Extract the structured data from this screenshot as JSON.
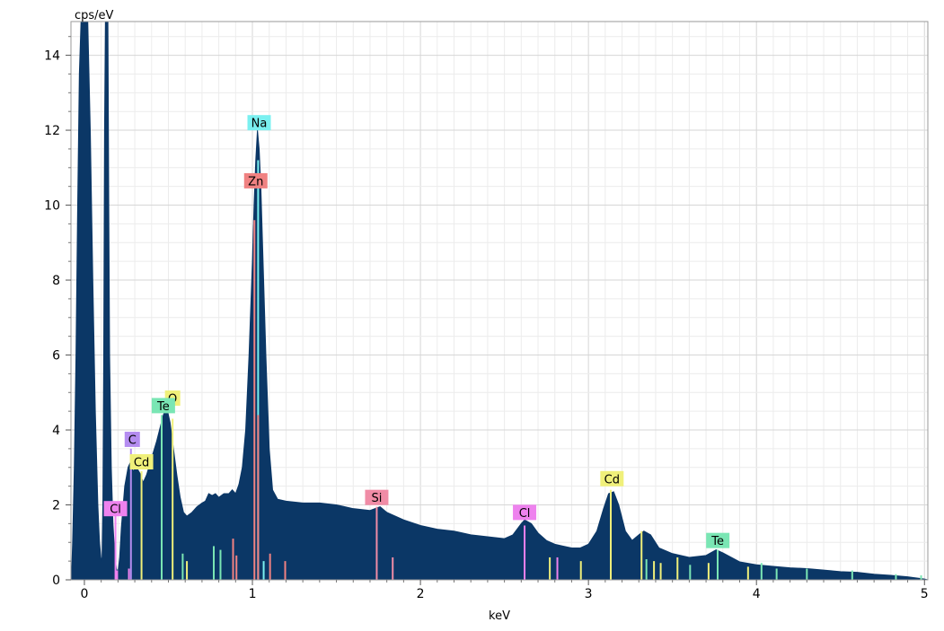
{
  "chart_data": {
    "type": "area",
    "xlabel": "keV",
    "ylabel": "cps/eV",
    "xlim": [
      -0.08,
      5.02
    ],
    "ylim": [
      0,
      14.9
    ],
    "x_ticks": [
      0,
      1,
      2,
      3,
      4,
      5
    ],
    "x_tick_labels": [
      "0",
      "1",
      "2",
      "3",
      "4",
      "5"
    ],
    "y_ticks": [
      0,
      2,
      4,
      6,
      8,
      10,
      12,
      14
    ],
    "y_tick_labels": [
      "0",
      "2",
      "4",
      "6",
      "8",
      "10",
      "12",
      "14"
    ],
    "grid": true,
    "spectrum_color": "#0b3766",
    "element_colors": {
      "Cl": "#ee82ee",
      "C": "#b48cf0",
      "Cd": "#f0f07a",
      "Te": "#7ae6b4",
      "O": "#f0f07a",
      "Na": "#7af0f0",
      "Zn": "#f08282",
      "Si": "#f08ca6"
    },
    "spectrum": [
      [
        -0.08,
        0.0
      ],
      [
        -0.075,
        0.3
      ],
      [
        -0.07,
        1.0
      ],
      [
        -0.06,
        3.0
      ],
      [
        -0.05,
        6.0
      ],
      [
        -0.04,
        10.0
      ],
      [
        -0.03,
        13.5
      ],
      [
        -0.02,
        14.9
      ],
      [
        0.0,
        14.9
      ],
      [
        0.02,
        14.9
      ],
      [
        0.035,
        12.0
      ],
      [
        0.05,
        8.0
      ],
      [
        0.065,
        4.5
      ],
      [
        0.08,
        2.0
      ],
      [
        0.09,
        1.0
      ],
      [
        0.1,
        0.5
      ],
      [
        0.105,
        0.6
      ],
      [
        0.11,
        2.0
      ],
      [
        0.115,
        6.0
      ],
      [
        0.12,
        12.0
      ],
      [
        0.125,
        14.9
      ],
      [
        0.14,
        14.9
      ],
      [
        0.145,
        10.0
      ],
      [
        0.15,
        6.0
      ],
      [
        0.16,
        3.0
      ],
      [
        0.17,
        1.5
      ],
      [
        0.18,
        0.7
      ],
      [
        0.19,
        0.3
      ],
      [
        0.2,
        0.2
      ],
      [
        0.21,
        0.6
      ],
      [
        0.22,
        1.4
      ],
      [
        0.24,
        2.5
      ],
      [
        0.26,
        3.0
      ],
      [
        0.275,
        3.15
      ],
      [
        0.29,
        2.9
      ],
      [
        0.31,
        3.0
      ],
      [
        0.33,
        2.85
      ],
      [
        0.35,
        2.6
      ],
      [
        0.37,
        2.8
      ],
      [
        0.39,
        3.1
      ],
      [
        0.41,
        3.4
      ],
      [
        0.43,
        3.7
      ],
      [
        0.45,
        4.05
      ],
      [
        0.47,
        4.4
      ],
      [
        0.49,
        4.6
      ],
      [
        0.51,
        4.2
      ],
      [
        0.53,
        3.5
      ],
      [
        0.55,
        2.8
      ],
      [
        0.57,
        2.2
      ],
      [
        0.59,
        1.8
      ],
      [
        0.61,
        1.7
      ],
      [
        0.64,
        1.8
      ],
      [
        0.67,
        1.95
      ],
      [
        0.7,
        2.05
      ],
      [
        0.72,
        2.1
      ],
      [
        0.74,
        2.3
      ],
      [
        0.76,
        2.25
      ],
      [
        0.78,
        2.3
      ],
      [
        0.8,
        2.2
      ],
      [
        0.83,
        2.3
      ],
      [
        0.86,
        2.3
      ],
      [
        0.88,
        2.4
      ],
      [
        0.9,
        2.3
      ],
      [
        0.92,
        2.55
      ],
      [
        0.94,
        3.0
      ],
      [
        0.96,
        4.0
      ],
      [
        0.98,
        6.0
      ],
      [
        1.0,
        8.5
      ],
      [
        1.01,
        10.0
      ],
      [
        1.02,
        11.2
      ],
      [
        1.03,
        12.0
      ],
      [
        1.04,
        11.5
      ],
      [
        1.05,
        10.5
      ],
      [
        1.06,
        9.0
      ],
      [
        1.08,
        6.0
      ],
      [
        1.1,
        3.5
      ],
      [
        1.12,
        2.4
      ],
      [
        1.15,
        2.15
      ],
      [
        1.2,
        2.1
      ],
      [
        1.3,
        2.05
      ],
      [
        1.4,
        2.05
      ],
      [
        1.5,
        2.0
      ],
      [
        1.6,
        1.9
      ],
      [
        1.7,
        1.85
      ],
      [
        1.76,
        1.95
      ],
      [
        1.8,
        1.8
      ],
      [
        1.9,
        1.6
      ],
      [
        2.0,
        1.45
      ],
      [
        2.1,
        1.35
      ],
      [
        2.2,
        1.3
      ],
      [
        2.3,
        1.2
      ],
      [
        2.4,
        1.15
      ],
      [
        2.5,
        1.1
      ],
      [
        2.55,
        1.2
      ],
      [
        2.6,
        1.5
      ],
      [
        2.62,
        1.6
      ],
      [
        2.66,
        1.5
      ],
      [
        2.7,
        1.25
      ],
      [
        2.75,
        1.05
      ],
      [
        2.8,
        0.95
      ],
      [
        2.85,
        0.9
      ],
      [
        2.9,
        0.85
      ],
      [
        2.95,
        0.85
      ],
      [
        3.0,
        0.95
      ],
      [
        3.05,
        1.3
      ],
      [
        3.09,
        1.9
      ],
      [
        3.12,
        2.3
      ],
      [
        3.15,
        2.35
      ],
      [
        3.18,
        2.0
      ],
      [
        3.22,
        1.3
      ],
      [
        3.26,
        1.05
      ],
      [
        3.3,
        1.2
      ],
      [
        3.33,
        1.3
      ],
      [
        3.37,
        1.2
      ],
      [
        3.42,
        0.85
      ],
      [
        3.5,
        0.7
      ],
      [
        3.6,
        0.6
      ],
      [
        3.7,
        0.65
      ],
      [
        3.76,
        0.8
      ],
      [
        3.8,
        0.72
      ],
      [
        3.9,
        0.48
      ],
      [
        4.0,
        0.4
      ],
      [
        4.1,
        0.36
      ],
      [
        4.2,
        0.32
      ],
      [
        4.3,
        0.3
      ],
      [
        4.4,
        0.26
      ],
      [
        4.5,
        0.22
      ],
      [
        4.6,
        0.2
      ],
      [
        4.7,
        0.15
      ],
      [
        4.8,
        0.12
      ],
      [
        4.9,
        0.08
      ],
      [
        4.95,
        0.05
      ],
      [
        5.0,
        0.02
      ],
      [
        5.02,
        0.0
      ]
    ],
    "marker_lines": [
      {
        "x": 0.185,
        "height": 1.7,
        "element": "Cl"
      },
      {
        "x": 0.195,
        "height": 0.25,
        "element": "Cl"
      },
      {
        "x": 0.265,
        "height": 0.3,
        "element": "Cl"
      },
      {
        "x": 0.277,
        "height": 3.5,
        "element": "C"
      },
      {
        "x": 0.34,
        "height": 2.9,
        "element": "Cd"
      },
      {
        "x": 0.46,
        "height": 4.4,
        "element": "Te"
      },
      {
        "x": 0.525,
        "height": 4.3,
        "element": "O"
      },
      {
        "x": 0.585,
        "height": 0.7,
        "element": "Te"
      },
      {
        "x": 0.61,
        "height": 0.5,
        "element": "Cd"
      },
      {
        "x": 0.77,
        "height": 0.9,
        "element": "Te"
      },
      {
        "x": 0.81,
        "height": 0.8,
        "element": "Te"
      },
      {
        "x": 0.885,
        "height": 1.1,
        "element": "Zn"
      },
      {
        "x": 0.905,
        "height": 0.65,
        "element": "Zn"
      },
      {
        "x": 1.012,
        "height": 9.6,
        "element": "Zn"
      },
      {
        "x": 1.034,
        "height": 11.2,
        "element": "Na"
      },
      {
        "x": 1.034,
        "height": 4.4,
        "element": "Zn"
      },
      {
        "x": 1.067,
        "height": 0.5,
        "element": "Na"
      },
      {
        "x": 1.105,
        "height": 0.7,
        "element": "Zn"
      },
      {
        "x": 1.195,
        "height": 0.5,
        "element": "Zn"
      },
      {
        "x": 1.74,
        "height": 1.95,
        "element": "Si"
      },
      {
        "x": 1.835,
        "height": 0.6,
        "element": "Si"
      },
      {
        "x": 2.62,
        "height": 1.45,
        "element": "Cl"
      },
      {
        "x": 2.815,
        "height": 0.6,
        "element": "Cl"
      },
      {
        "x": 2.77,
        "height": 0.6,
        "element": "Cd"
      },
      {
        "x": 2.955,
        "height": 0.5,
        "element": "Cd"
      },
      {
        "x": 3.133,
        "height": 2.4,
        "element": "Cd"
      },
      {
        "x": 3.316,
        "height": 1.3,
        "element": "Cd"
      },
      {
        "x": 3.345,
        "height": 0.55,
        "element": "Te"
      },
      {
        "x": 3.39,
        "height": 0.5,
        "element": "Cd"
      },
      {
        "x": 3.43,
        "height": 0.45,
        "element": "Cd"
      },
      {
        "x": 3.53,
        "height": 0.6,
        "element": "Cd"
      },
      {
        "x": 3.605,
        "height": 0.4,
        "element": "Te"
      },
      {
        "x": 3.715,
        "height": 0.45,
        "element": "Cd"
      },
      {
        "x": 3.769,
        "height": 0.8,
        "element": "Te"
      },
      {
        "x": 3.95,
        "height": 0.35,
        "element": "Cd"
      },
      {
        "x": 4.03,
        "height": 0.45,
        "element": "Te"
      },
      {
        "x": 4.12,
        "height": 0.3,
        "element": "Te"
      },
      {
        "x": 4.3,
        "height": 0.3,
        "element": "Te"
      },
      {
        "x": 4.57,
        "height": 0.25,
        "element": "Te"
      },
      {
        "x": 4.83,
        "height": 0.15,
        "element": "Te"
      },
      {
        "x": 4.98,
        "height": 0.12,
        "element": "Te"
      }
    ],
    "peak_labels": [
      {
        "text": "Na",
        "x": 1.04,
        "y": 12.2,
        "element": "Na"
      },
      {
        "text": "Zn",
        "x": 1.02,
        "y": 10.65,
        "element": "Zn"
      },
      {
        "text": "O",
        "x": 0.525,
        "y": 4.85,
        "element": "O"
      },
      {
        "text": "Te",
        "x": 0.47,
        "y": 4.65,
        "element": "Te"
      },
      {
        "text": "C",
        "x": 0.285,
        "y": 3.75,
        "element": "C"
      },
      {
        "text": "Cd",
        "x": 0.34,
        "y": 3.15,
        "element": "Cd"
      },
      {
        "text": "Cl",
        "x": 0.185,
        "y": 1.9,
        "element": "Cl"
      },
      {
        "text": "Si",
        "x": 1.74,
        "y": 2.2,
        "element": "Si"
      },
      {
        "text": "Cl",
        "x": 2.62,
        "y": 1.8,
        "element": "Cl"
      },
      {
        "text": "Cd",
        "x": 3.14,
        "y": 2.7,
        "element": "Cd"
      },
      {
        "text": "Te",
        "x": 3.77,
        "y": 1.05,
        "element": "Te"
      }
    ]
  }
}
